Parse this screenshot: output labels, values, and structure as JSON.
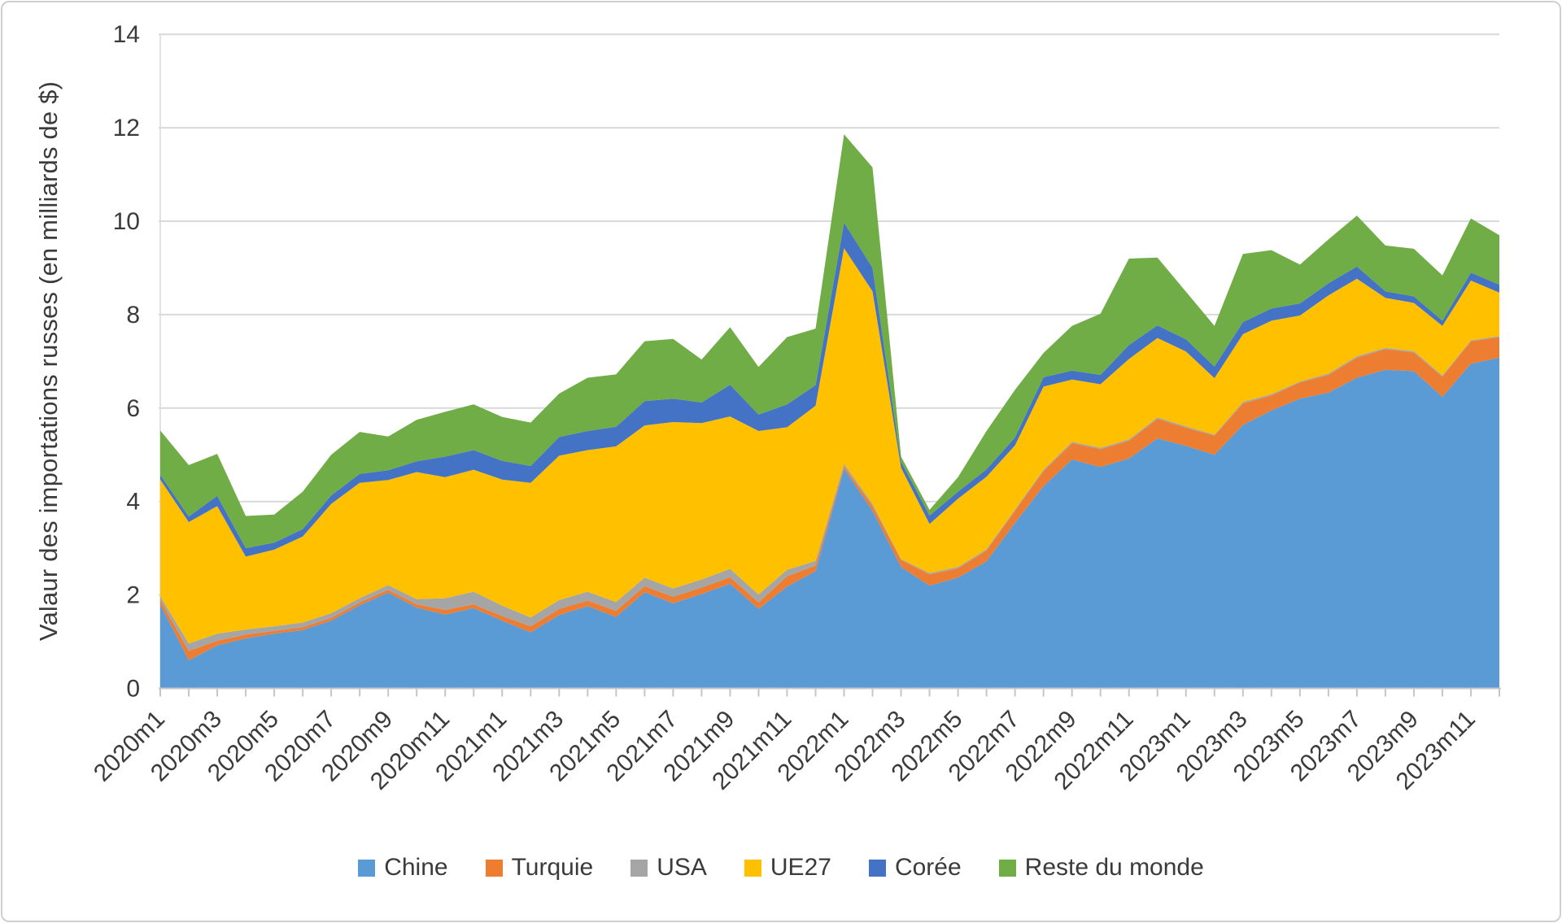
{
  "chart": {
    "y_axis": {
      "tick_labels": [
        "0",
        "2",
        "4",
        "6",
        "8",
        "10",
        "12",
        "14"
      ],
      "tick_values": [
        0,
        2,
        4,
        6,
        8,
        10,
        12,
        14
      ],
      "min": 0,
      "max": 14
    },
    "colors": {
      "grid": "#d9d9d9",
      "axis": "#c6c6c6",
      "text": "#3b3b3b",
      "background": "#ffffff",
      "frame_border": "#cfcfcf"
    },
    "x_label_every": 2
  },
  "chart_data": {
    "type": "area",
    "stacked": true,
    "title": "",
    "xlabel": "",
    "ylabel": "Valaur des importations russes (en milliards de $)",
    "ylim": [
      0,
      14
    ],
    "grid": "horizontal",
    "legend_position": "bottom",
    "x": [
      "2020m1",
      "2020m2",
      "2020m3",
      "2020m4",
      "2020m5",
      "2020m6",
      "2020m7",
      "2020m8",
      "2020m9",
      "2020m10",
      "2020m11",
      "2020m12",
      "2021m1",
      "2021m2",
      "2021m3",
      "2021m4",
      "2021m5",
      "2021m6",
      "2021m7",
      "2021m8",
      "2021m9",
      "2021m10",
      "2021m11",
      "2021m12",
      "2022m1",
      "2022m2",
      "2022m3",
      "2022m4",
      "2022m5",
      "2022m6",
      "2022m7",
      "2022m8",
      "2022m9",
      "2022m10",
      "2022m11",
      "2022m12",
      "2023m1",
      "2023m2",
      "2023m3",
      "2023m4",
      "2023m5",
      "2023m6",
      "2023m7",
      "2023m8",
      "2023m9",
      "2023m10",
      "2023m11",
      "2023m12"
    ],
    "series": [
      {
        "name": "Chine",
        "color": "#5b9bd5",
        "values": [
          1.8,
          0.6,
          0.92,
          1.07,
          1.17,
          1.25,
          1.45,
          1.78,
          2.05,
          1.73,
          1.58,
          1.72,
          1.45,
          1.2,
          1.57,
          1.76,
          1.53,
          2.06,
          1.82,
          2.02,
          2.24,
          1.7,
          2.18,
          2.51,
          4.7,
          3.8,
          2.6,
          2.2,
          2.37,
          2.72,
          3.54,
          4.33,
          4.9,
          4.74,
          4.92,
          5.35,
          5.19,
          5.0,
          5.64,
          5.95,
          6.2,
          6.33,
          6.65,
          6.82,
          6.79,
          6.24,
          6.95,
          7.08
        ]
      },
      {
        "name": "Turquie",
        "color": "#ed7d31",
        "values": [
          0.09,
          0.2,
          0.1,
          0.08,
          0.06,
          0.06,
          0.06,
          0.06,
          0.06,
          0.07,
          0.1,
          0.08,
          0.1,
          0.13,
          0.13,
          0.12,
          0.13,
          0.13,
          0.14,
          0.14,
          0.14,
          0.14,
          0.22,
          0.12,
          0.05,
          0.1,
          0.15,
          0.24,
          0.2,
          0.23,
          0.26,
          0.32,
          0.35,
          0.38,
          0.38,
          0.42,
          0.39,
          0.41,
          0.46,
          0.32,
          0.35,
          0.38,
          0.43,
          0.44,
          0.4,
          0.43,
          0.48,
          0.44
        ]
      },
      {
        "name": "USA",
        "color": "#a5a5a5",
        "values": [
          0.08,
          0.16,
          0.15,
          0.11,
          0.1,
          0.1,
          0.1,
          0.09,
          0.1,
          0.11,
          0.25,
          0.27,
          0.22,
          0.19,
          0.19,
          0.19,
          0.19,
          0.18,
          0.18,
          0.17,
          0.18,
          0.17,
          0.14,
          0.1,
          0.06,
          0.05,
          0.02,
          0.03,
          0.03,
          0.03,
          0.03,
          0.03,
          0.03,
          0.03,
          0.03,
          0.03,
          0.03,
          0.02,
          0.03,
          0.03,
          0.02,
          0.03,
          0.03,
          0.03,
          0.03,
          0.03,
          0.02,
          0.02
        ]
      },
      {
        "name": "UE27",
        "color": "#ffc000",
        "values": [
          2.5,
          2.6,
          2.73,
          1.56,
          1.64,
          1.84,
          2.34,
          2.47,
          2.25,
          2.72,
          2.59,
          2.61,
          2.7,
          2.88,
          3.09,
          3.03,
          3.33,
          3.26,
          3.56,
          3.35,
          3.26,
          3.5,
          3.05,
          3.32,
          4.61,
          4.55,
          1.95,
          1.05,
          1.46,
          1.55,
          1.37,
          1.78,
          1.33,
          1.36,
          1.72,
          1.7,
          1.6,
          1.21,
          1.45,
          1.57,
          1.41,
          1.67,
          1.66,
          1.07,
          1.03,
          1.06,
          1.28,
          0.93
        ]
      },
      {
        "name": "Corée",
        "color": "#4472c4",
        "values": [
          0.1,
          0.12,
          0.22,
          0.18,
          0.15,
          0.16,
          0.18,
          0.19,
          0.21,
          0.23,
          0.44,
          0.42,
          0.4,
          0.36,
          0.4,
          0.41,
          0.42,
          0.52,
          0.5,
          0.44,
          0.68,
          0.35,
          0.49,
          0.44,
          0.55,
          0.5,
          0.13,
          0.18,
          0.15,
          0.16,
          0.17,
          0.2,
          0.19,
          0.2,
          0.3,
          0.27,
          0.26,
          0.25,
          0.26,
          0.26,
          0.26,
          0.26,
          0.26,
          0.14,
          0.14,
          0.11,
          0.17,
          0.17
        ]
      },
      {
        "name": "Reste du monde",
        "color": "#70ad47",
        "values": [
          0.95,
          1.1,
          0.9,
          0.69,
          0.6,
          0.8,
          0.87,
          0.9,
          0.72,
          0.89,
          0.96,
          0.98,
          0.94,
          0.93,
          0.93,
          1.14,
          1.12,
          1.28,
          1.28,
          0.92,
          1.23,
          1.02,
          1.44,
          1.21,
          1.89,
          2.15,
          0.11,
          0.12,
          0.31,
          0.82,
          1.02,
          0.52,
          0.96,
          1.31,
          1.85,
          1.45,
          1.02,
          0.87,
          1.46,
          1.25,
          0.83,
          0.94,
          1.09,
          0.98,
          1.02,
          0.97,
          1.16,
          1.06
        ]
      }
    ]
  }
}
